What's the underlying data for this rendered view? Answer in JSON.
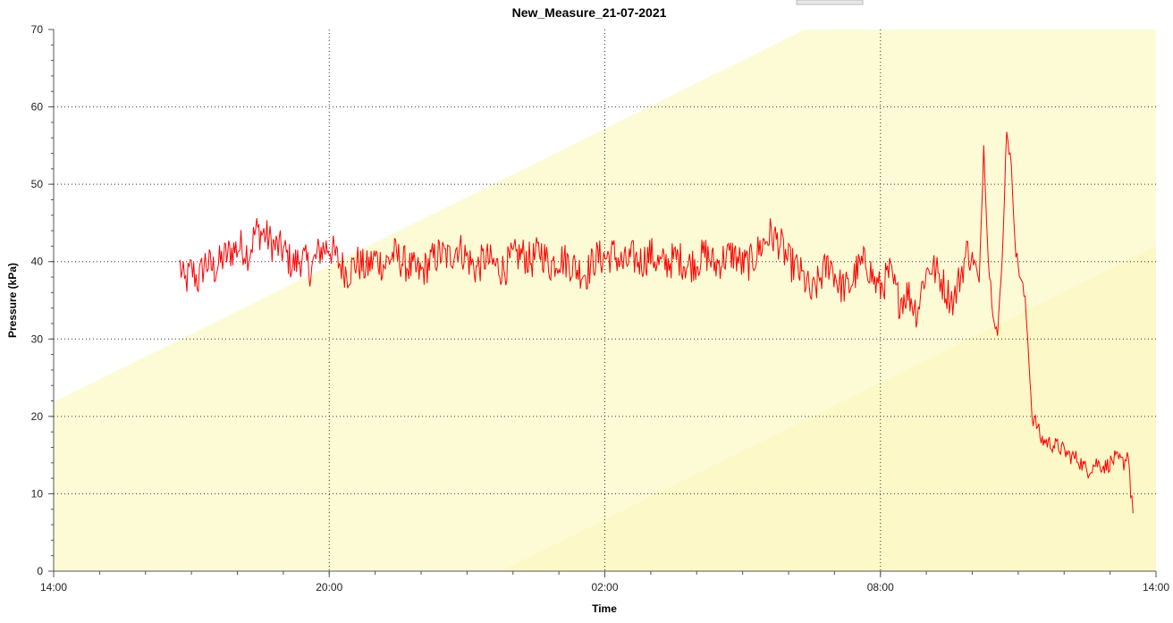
{
  "chart_data": {
    "type": "line",
    "title": "New_Measure_21-07-2021",
    "xlabel": "Time",
    "ylabel": "Pressure (kPa)",
    "xlim_hours": [
      14,
      38
    ],
    "ylim": [
      0,
      70
    ],
    "x_ticks": [
      {
        "hour": 14,
        "label": "14:00"
      },
      {
        "hour": 20,
        "label": "20:00"
      },
      {
        "hour": 26,
        "label": "02:00"
      },
      {
        "hour": 32,
        "label": "08:00"
      },
      {
        "hour": 38,
        "label": "14:00"
      }
    ],
    "y_ticks": [
      0,
      10,
      20,
      30,
      40,
      50,
      60,
      70
    ],
    "grid": true,
    "colors": {
      "line": "#ff0000",
      "band": "#fdfbd6",
      "grid": "#333333"
    },
    "series": [
      {
        "name": "",
        "points": [
          [
            16.75,
            39.5
          ],
          [
            16.85,
            37.0
          ],
          [
            17.0,
            39.0
          ],
          [
            17.15,
            37.5
          ],
          [
            17.3,
            40.0
          ],
          [
            17.5,
            39.0
          ],
          [
            17.7,
            40.5
          ],
          [
            17.9,
            41.5
          ],
          [
            18.1,
            42.0
          ],
          [
            18.25,
            41.0
          ],
          [
            18.4,
            44.0
          ],
          [
            18.6,
            43.5
          ],
          [
            18.8,
            42.0
          ],
          [
            19.0,
            41.5
          ],
          [
            19.2,
            39.5
          ],
          [
            19.4,
            40.5
          ],
          [
            19.6,
            39.0
          ],
          [
            19.8,
            41.5
          ],
          [
            20.0,
            42.0
          ],
          [
            20.2,
            40.0
          ],
          [
            20.4,
            38.5
          ],
          [
            20.6,
            40.0
          ],
          [
            20.8,
            39.0
          ],
          [
            21.0,
            40.5
          ],
          [
            21.2,
            39.5
          ],
          [
            21.4,
            41.0
          ],
          [
            21.6,
            40.0
          ],
          [
            21.8,
            39.0
          ],
          [
            22.0,
            38.5
          ],
          [
            22.2,
            40.0
          ],
          [
            22.4,
            41.0
          ],
          [
            22.6,
            40.5
          ],
          [
            22.8,
            42.0
          ],
          [
            23.0,
            40.5
          ],
          [
            23.2,
            39.0
          ],
          [
            23.4,
            40.5
          ],
          [
            23.6,
            39.5
          ],
          [
            23.8,
            39.0
          ],
          [
            24.0,
            40.5
          ],
          [
            24.2,
            41.0
          ],
          [
            24.4,
            40.0
          ],
          [
            24.6,
            41.5
          ],
          [
            24.8,
            39.5
          ],
          [
            25.0,
            40.5
          ],
          [
            25.2,
            40.0
          ],
          [
            25.4,
            39.0
          ],
          [
            25.6,
            38.5
          ],
          [
            25.8,
            40.5
          ],
          [
            26.0,
            40.5
          ],
          [
            26.2,
            41.0
          ],
          [
            26.4,
            39.5
          ],
          [
            26.6,
            40.5
          ],
          [
            26.8,
            40.0
          ],
          [
            27.0,
            41.0
          ],
          [
            27.2,
            39.5
          ],
          [
            27.4,
            40.0
          ],
          [
            27.6,
            40.5
          ],
          [
            27.8,
            39.5
          ],
          [
            28.0,
            40.0
          ],
          [
            28.2,
            41.0
          ],
          [
            28.4,
            39.5
          ],
          [
            28.6,
            40.5
          ],
          [
            28.8,
            41.0
          ],
          [
            29.0,
            39.5
          ],
          [
            29.2,
            40.0
          ],
          [
            29.4,
            42.0
          ],
          [
            29.6,
            43.5
          ],
          [
            29.8,
            42.5
          ],
          [
            30.0,
            40.0
          ],
          [
            30.2,
            39.0
          ],
          [
            30.4,
            37.0
          ],
          [
            30.5,
            35.5
          ],
          [
            30.7,
            38.0
          ],
          [
            30.9,
            40.0
          ],
          [
            31.1,
            37.0
          ],
          [
            31.3,
            36.5
          ],
          [
            31.5,
            39.0
          ],
          [
            31.7,
            40.0
          ],
          [
            31.9,
            37.0
          ],
          [
            32.0,
            36.5
          ],
          [
            32.2,
            38.5
          ],
          [
            32.4,
            35.0
          ],
          [
            32.6,
            36.0
          ],
          [
            32.8,
            33.5
          ],
          [
            32.95,
            38.0
          ],
          [
            33.1,
            39.5
          ],
          [
            33.3,
            38.0
          ],
          [
            33.45,
            36.0
          ],
          [
            33.6,
            35.0
          ],
          [
            33.75,
            38.5
          ],
          [
            33.9,
            41.5
          ],
          [
            34.05,
            40.0
          ],
          [
            34.15,
            37.0
          ],
          [
            34.25,
            55.0
          ],
          [
            34.35,
            40.0
          ],
          [
            34.45,
            34.0
          ],
          [
            34.55,
            30.5
          ],
          [
            34.65,
            40.0
          ],
          [
            34.75,
            57.5
          ],
          [
            34.85,
            52.0
          ],
          [
            34.95,
            41.0
          ],
          [
            35.05,
            38.0
          ],
          [
            35.15,
            35.0
          ],
          [
            35.25,
            26.0
          ],
          [
            35.3,
            20.0
          ],
          [
            35.4,
            19.0
          ],
          [
            35.5,
            17.0
          ],
          [
            35.7,
            16.5
          ],
          [
            35.9,
            16.0
          ],
          [
            36.1,
            15.0
          ],
          [
            36.3,
            14.5
          ],
          [
            36.5,
            13.0
          ],
          [
            36.7,
            14.0
          ],
          [
            36.9,
            13.5
          ],
          [
            37.1,
            14.5
          ],
          [
            37.3,
            14.0
          ],
          [
            37.4,
            15.5
          ],
          [
            37.45,
            10.0
          ],
          [
            37.5,
            7.5
          ]
        ]
      }
    ]
  }
}
